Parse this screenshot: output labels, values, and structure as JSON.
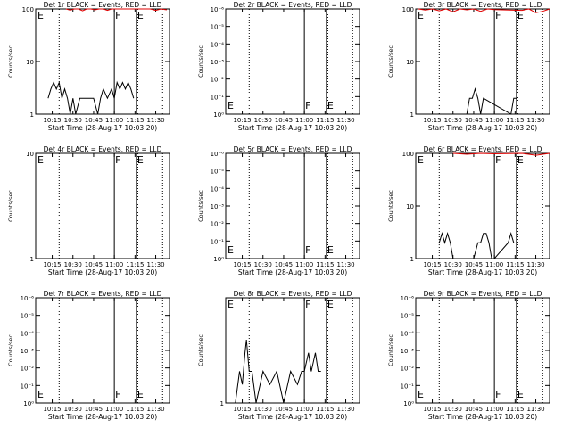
{
  "panels": [
    {
      "title": "Det 1r BLACK = Events, RED = LLD",
      "xlabel": "Start Time (28-Aug-17 10:03:20)",
      "ylabel": "Counts/sec",
      "x_tick_labels": [
        "10:15",
        "10:30",
        "10:45",
        "11:00",
        "11:15",
        "11:30"
      ],
      "y_tick_labels": [
        "1",
        "10",
        "100"
      ],
      "markers": [
        "E",
        "F",
        "E"
      ]
    },
    {
      "title": "Det 2r BLACK = Events, RED = LLD",
      "xlabel": "Start Time (28-Aug-17 10:03:20)",
      "ylabel": "Counts/sec",
      "x_tick_labels": [
        "10:15",
        "10:30",
        "10:45",
        "11:00",
        "11:15",
        "11:30"
      ],
      "y_tick_labels": [
        "10⁰",
        "10⁻¹",
        "10⁻²",
        "10⁻³",
        "10⁻⁴",
        "10⁻⁵",
        "10⁻⁶"
      ],
      "markers": [
        "E",
        "F",
        "E"
      ]
    },
    {
      "title": "Det 3r BLACK = Events, RED = LLD",
      "xlabel": "Start Time (28-Aug-17 10:03:20)",
      "ylabel": "Counts/sec",
      "x_tick_labels": [
        "10:15",
        "10:30",
        "10:45",
        "11:00",
        "11:15",
        "11:30"
      ],
      "y_tick_labels": [
        "1",
        "10",
        "100"
      ],
      "markers": [
        "E",
        "F",
        "E"
      ]
    },
    {
      "title": "Det 4r BLACK = Events, RED = LLD",
      "xlabel": "Start Time (28-Aug-17 10:03:20)",
      "ylabel": "Counts/sec",
      "x_tick_labels": [
        "10:15",
        "10:30",
        "10:45",
        "11:00",
        "11:15",
        "11:30"
      ],
      "y_tick_labels": [
        "1",
        "10"
      ],
      "markers": [
        "E",
        "F",
        "E"
      ]
    },
    {
      "title": "Det 5r BLACK = Events, RED = LLD",
      "xlabel": "Start Time (28-Aug-17 10:03:20)",
      "ylabel": "Counts/sec",
      "x_tick_labels": [
        "10:15",
        "10:30",
        "10:45",
        "11:00",
        "11:15",
        "11:30"
      ],
      "y_tick_labels": [
        "10⁰",
        "10⁻¹",
        "10⁻²",
        "10⁻³",
        "10⁻⁴",
        "10⁻⁵",
        "10⁻⁶"
      ],
      "markers": [
        "E",
        "F",
        "E"
      ]
    },
    {
      "title": "Det 6r BLACK = Events, RED = LLD",
      "xlabel": "Start Time (28-Aug-17 10:03:20)",
      "ylabel": "Counts/sec",
      "x_tick_labels": [
        "10:15",
        "10:30",
        "10:45",
        "11:00",
        "11:15",
        "11:30"
      ],
      "y_tick_labels": [
        "1",
        "10",
        "100"
      ],
      "markers": [
        "E",
        "F",
        "E"
      ]
    },
    {
      "title": "Det 7r BLACK = Events, RED = LLD",
      "xlabel": "Start Time (28-Aug-17 10:03:20)",
      "ylabel": "Counts/sec",
      "x_tick_labels": [
        "10:15",
        "10:30",
        "10:45",
        "11:00",
        "11:15",
        "11:30"
      ],
      "y_tick_labels": [
        "10⁰",
        "10⁻¹",
        "10⁻²",
        "10⁻³",
        "10⁻⁴",
        "10⁻⁵",
        "10⁻⁶"
      ],
      "markers": [
        "E",
        "F",
        "E"
      ]
    },
    {
      "title": "Det 8r BLACK = Events, RED = LLD",
      "xlabel": "Start Time (28-Aug-17 10:03:20)",
      "ylabel": "Counts/sec",
      "x_tick_labels": [
        "10:15",
        "10:30",
        "10:45",
        "11:00",
        "11:15",
        "11:30"
      ],
      "y_tick_labels": [
        "1"
      ],
      "markers": [
        "E",
        "F",
        "E"
      ]
    },
    {
      "title": "Det 9r BLACK = Events, RED = LLD",
      "xlabel": "Start Time (28-Aug-17 10:03:20)",
      "ylabel": "Counts/sec",
      "x_tick_labels": [
        "10:15",
        "10:30",
        "10:45",
        "11:00",
        "11:15",
        "11:30"
      ],
      "y_tick_labels": [
        "10⁰",
        "10⁻¹",
        "10⁻²",
        "10⁻³",
        "10⁻⁴",
        "10⁻⁵",
        "10⁻⁶"
      ],
      "markers": [
        "E",
        "F",
        "E"
      ]
    }
  ],
  "colors": {
    "events": "#000000",
    "lld": "#e00000",
    "axes": "#000000",
    "background": "#ffffff"
  },
  "chart_data": [
    {
      "type": "line",
      "panel": "Det 1r",
      "x_axis": "time",
      "x_range": [
        "10:03",
        "11:40"
      ],
      "y_scale": "log",
      "ylim": [
        1,
        100
      ],
      "dotted_lines_at": [
        "10:20",
        "11:17",
        "11:35"
      ],
      "solid_lines_at": [
        "11:00",
        "11:16"
      ],
      "series": [
        {
          "name": "BLACK = Events",
          "x": [
            "10:12",
            "10:14",
            "10:16",
            "10:18",
            "10:20",
            "10:22",
            "10:24",
            "10:26",
            "10:28",
            "10:30",
            "10:32",
            "10:35",
            "10:40",
            "10:45",
            "10:48",
            "10:50",
            "10:52",
            "10:55",
            "10:58",
            "11:00",
            "11:02",
            "11:04",
            "11:06",
            "11:08",
            "11:10",
            "11:12",
            "11:14"
          ],
          "y": [
            2,
            3,
            4,
            3,
            4,
            2,
            3,
            2,
            1,
            2,
            1,
            2,
            2,
            2,
            1,
            2,
            3,
            2,
            3,
            2,
            4,
            3,
            4,
            3,
            4,
            3,
            2
          ]
        },
        {
          "name": "RED = LLD",
          "x": [
            "10:25",
            "10:28",
            "10:31",
            "10:34",
            "10:37",
            "10:40",
            "10:43",
            "10:46",
            "10:49",
            "10:52",
            "10:55",
            "10:58",
            "11:22",
            "11:26",
            "11:30",
            "11:34",
            "11:38"
          ],
          "y": [
            100,
            95,
            100,
            100,
            92,
            100,
            100,
            96,
            100,
            100,
            94,
            100,
            100,
            100,
            94,
            100,
            96
          ]
        }
      ]
    },
    {
      "type": "line",
      "panel": "Det 2r",
      "x_axis": "time",
      "x_range": [
        "10:03",
        "11:40"
      ],
      "y_scale": "log",
      "ylim": [
        1e-06,
        1
      ],
      "dotted_lines_at": [
        "10:20",
        "11:17",
        "11:35"
      ],
      "solid_lines_at": [
        "11:00",
        "11:16"
      ],
      "series": []
    },
    {
      "type": "line",
      "panel": "Det 3r",
      "x_axis": "time",
      "x_range": [
        "10:03",
        "11:40"
      ],
      "y_scale": "log",
      "ylim": [
        1,
        100
      ],
      "dotted_lines_at": [
        "10:20",
        "11:17",
        "11:35"
      ],
      "solid_lines_at": [
        "11:00",
        "11:16"
      ],
      "series": [
        {
          "name": "BLACK = Events",
          "x": [
            "10:40",
            "10:42",
            "10:44",
            "10:46",
            "10:48",
            "10:50",
            "10:52",
            "11:12",
            "11:14",
            "11:16"
          ],
          "y": [
            1,
            2,
            2,
            3,
            2,
            1,
            2,
            1,
            2,
            2
          ]
        },
        {
          "name": "RED = LLD",
          "x": [
            "10:05",
            "10:10",
            "10:15",
            "10:20",
            "10:25",
            "10:30",
            "10:35",
            "10:40",
            "10:45",
            "10:50",
            "10:55",
            "11:00",
            "11:20",
            "11:25",
            "11:30",
            "11:35",
            "11:40"
          ],
          "y": [
            100,
            95,
            100,
            92,
            100,
            88,
            100,
            96,
            100,
            90,
            100,
            97,
            94,
            100,
            85,
            90,
            100
          ]
        }
      ]
    },
    {
      "type": "line",
      "panel": "Det 4r",
      "x_axis": "time",
      "x_range": [
        "10:03",
        "11:40"
      ],
      "y_scale": "log",
      "ylim": [
        1,
        10
      ],
      "dotted_lines_at": [
        "10:20",
        "11:17",
        "11:35"
      ],
      "solid_lines_at": [
        "11:00",
        "11:16"
      ],
      "series": []
    },
    {
      "type": "line",
      "panel": "Det 5r",
      "x_axis": "time",
      "x_range": [
        "10:03",
        "11:40"
      ],
      "y_scale": "log",
      "ylim": [
        1e-06,
        1
      ],
      "dotted_lines_at": [
        "10:20",
        "11:17",
        "11:35"
      ],
      "solid_lines_at": [
        "11:00",
        "11:16"
      ],
      "series": []
    },
    {
      "type": "line",
      "panel": "Det 6r",
      "x_axis": "time",
      "x_range": [
        "10:03",
        "11:40"
      ],
      "y_scale": "log",
      "ylim": [
        1,
        100
      ],
      "dotted_lines_at": [
        "10:20",
        "11:17",
        "11:35"
      ],
      "solid_lines_at": [
        "11:00",
        "11:16"
      ],
      "series": [
        {
          "name": "BLACK = Events",
          "x": [
            "10:20",
            "10:22",
            "10:24",
            "10:26",
            "10:28",
            "10:30",
            "10:45",
            "10:48",
            "10:50",
            "10:52",
            "10:54",
            "10:56",
            "10:58",
            "11:00",
            "11:10",
            "11:12",
            "11:14"
          ],
          "y": [
            2,
            3,
            2,
            3,
            2,
            1,
            1,
            2,
            2,
            3,
            3,
            2,
            1,
            1,
            2,
            3,
            2
          ]
        },
        {
          "name": "RED = LLD",
          "x": [
            "10:30",
            "10:40",
            "10:50",
            "11:00",
            "11:20",
            "11:30",
            "11:40"
          ],
          "y": [
            100,
            96,
            100,
            98,
            100,
            92,
            100
          ]
        }
      ]
    },
    {
      "type": "line",
      "panel": "Det 7r",
      "x_axis": "time",
      "x_range": [
        "10:03",
        "11:40"
      ],
      "y_scale": "log",
      "ylim": [
        1e-06,
        1
      ],
      "dotted_lines_at": [
        "10:20",
        "11:17",
        "11:35"
      ],
      "solid_lines_at": [
        "11:00",
        "11:16"
      ],
      "series": []
    },
    {
      "type": "line",
      "panel": "Det 8r",
      "x_axis": "time",
      "x_range": [
        "10:03",
        "11:40"
      ],
      "y_scale": "log",
      "ylim": [
        1,
        10
      ],
      "dotted_lines_at": [
        "10:20",
        "11:17",
        "11:35"
      ],
      "solid_lines_at": [
        "11:00",
        "11:16"
      ],
      "series": [
        {
          "name": "BLACK = Events",
          "x": [
            "10:10",
            "10:13",
            "10:15",
            "10:17",
            "10:18",
            "10:20",
            "10:22",
            "10:25",
            "10:30",
            "10:35",
            "10:40",
            "10:45",
            "10:50",
            "10:55",
            "10:58",
            "11:00",
            "11:03",
            "11:05",
            "11:08",
            "11:10",
            "11:12"
          ],
          "y": [
            1,
            2,
            1.5,
            3,
            4,
            2,
            2,
            1,
            2,
            1.5,
            2,
            1,
            2,
            1.5,
            2,
            2,
            3,
            2,
            3,
            2,
            2
          ]
        }
      ]
    },
    {
      "type": "line",
      "panel": "Det 9r",
      "x_axis": "time",
      "x_range": [
        "10:03",
        "11:40"
      ],
      "y_scale": "log",
      "ylim": [
        1e-06,
        1
      ],
      "dotted_lines_at": [
        "10:20",
        "11:17",
        "11:35"
      ],
      "solid_lines_at": [
        "11:00",
        "11:16"
      ],
      "series": []
    }
  ]
}
